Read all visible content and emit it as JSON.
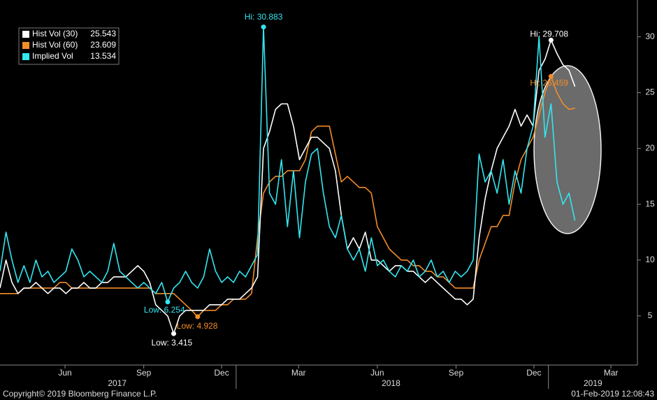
{
  "chart_data": {
    "type": "line",
    "x": [
      "2017-03-31",
      "2017-04-07",
      "2017-04-14",
      "2017-04-21",
      "2017-04-28",
      "2017-05-05",
      "2017-05-12",
      "2017-05-19",
      "2017-05-26",
      "2017-06-02",
      "2017-06-09",
      "2017-06-16",
      "2017-06-23",
      "2017-06-30",
      "2017-07-07",
      "2017-07-14",
      "2017-07-21",
      "2017-07-28",
      "2017-08-04",
      "2017-08-11",
      "2017-08-18",
      "2017-08-25",
      "2017-09-01",
      "2017-09-08",
      "2017-09-15",
      "2017-09-22",
      "2017-09-29",
      "2017-10-06",
      "2017-10-13",
      "2017-10-20",
      "2017-10-27",
      "2017-11-03",
      "2017-11-10",
      "2017-11-17",
      "2017-11-24",
      "2017-12-01",
      "2017-12-08",
      "2017-12-15",
      "2017-12-22",
      "2017-12-29",
      "2018-01-05",
      "2018-01-12",
      "2018-01-19",
      "2018-01-26",
      "2018-02-02",
      "2018-02-09",
      "2018-02-16",
      "2018-02-23",
      "2018-03-02",
      "2018-03-09",
      "2018-03-16",
      "2018-03-23",
      "2018-03-30",
      "2018-04-06",
      "2018-04-13",
      "2018-04-20",
      "2018-04-27",
      "2018-05-04",
      "2018-05-11",
      "2018-05-18",
      "2018-05-25",
      "2018-06-01",
      "2018-06-08",
      "2018-06-15",
      "2018-06-22",
      "2018-06-29",
      "2018-07-06",
      "2018-07-13",
      "2018-07-20",
      "2018-07-27",
      "2018-08-03",
      "2018-08-10",
      "2018-08-17",
      "2018-08-24",
      "2018-08-31",
      "2018-09-07",
      "2018-09-14",
      "2018-09-21",
      "2018-09-28",
      "2018-10-05",
      "2018-10-12",
      "2018-10-19",
      "2018-10-26",
      "2018-11-02",
      "2018-11-09",
      "2018-11-16",
      "2018-11-23",
      "2018-11-30",
      "2018-12-07",
      "2018-12-14",
      "2018-12-21",
      "2018-12-28",
      "2019-01-04",
      "2019-01-11",
      "2019-01-18",
      "2019-01-25",
      "2019-02-01"
    ],
    "series": [
      {
        "name": "Hist Vol (30)",
        "last": 25.543,
        "color": "#ffffff",
        "values": [
          7.5,
          10,
          8,
          7,
          7.5,
          7.5,
          8,
          7.5,
          7,
          7.5,
          7.5,
          7,
          7.5,
          7.5,
          8,
          7.5,
          7.5,
          8,
          8,
          8.5,
          8.5,
          8.5,
          9,
          9.5,
          9,
          8,
          6,
          5.5,
          5,
          3.415,
          5,
          5.5,
          5.5,
          5.5,
          5.5,
          6,
          6,
          6,
          6.5,
          6.5,
          6.5,
          7,
          7.5,
          8.5,
          20,
          21.5,
          23.5,
          24,
          24,
          22,
          19,
          20,
          21,
          21,
          20.5,
          20,
          18,
          14,
          11,
          12,
          11,
          12.5,
          10,
          10,
          9.5,
          9,
          9.5,
          9.5,
          9,
          9,
          8.5,
          8,
          8.5,
          8,
          7.5,
          7,
          6.5,
          6.5,
          6,
          6.5,
          12,
          15.5,
          18,
          20,
          21,
          22,
          23.5,
          22,
          23,
          22,
          27,
          28,
          29.708,
          28.5,
          27.5,
          27,
          25.543
        ]
      },
      {
        "name": "Hist Vol (60)",
        "last": 23.609,
        "color": "#f28c28",
        "values": [
          7,
          7,
          7,
          7,
          7.5,
          7.5,
          7.5,
          7.5,
          7.5,
          7.5,
          8,
          8,
          7.5,
          7.5,
          7.5,
          7.5,
          7.5,
          7.5,
          7.5,
          7.5,
          7.5,
          7.5,
          7.5,
          7.5,
          7.5,
          7.5,
          7,
          7,
          7,
          7,
          6.5,
          6,
          5.5,
          4.928,
          5.5,
          5.5,
          5.5,
          6,
          6,
          6.5,
          6.5,
          6.5,
          7,
          12,
          16,
          17,
          17.5,
          17.5,
          18,
          18,
          18,
          19,
          21.5,
          22,
          22,
          22,
          19.5,
          17,
          17.5,
          17,
          16.5,
          16.5,
          16,
          13,
          12,
          11,
          10.5,
          10,
          10,
          9.5,
          9.5,
          9,
          9,
          8.5,
          8.5,
          8,
          7.5,
          7.5,
          7.5,
          7.5,
          10,
          11.5,
          13,
          13,
          14,
          14,
          17,
          19,
          20,
          21,
          23,
          25,
          26.459,
          25,
          24,
          23.5,
          23.609
        ]
      },
      {
        "name": "Implied Vol",
        "last": 13.534,
        "color": "#33e6f0",
        "values": [
          9,
          12.5,
          10,
          8,
          9.5,
          8,
          10,
          8.5,
          9,
          8,
          8.5,
          9,
          11,
          10,
          8.5,
          9,
          8.5,
          8,
          9,
          11.5,
          9,
          8.5,
          8,
          7.5,
          8,
          7.5,
          7,
          8,
          6.254,
          7.5,
          8,
          9,
          8,
          7.5,
          8.5,
          11,
          9,
          8,
          8.5,
          8,
          9,
          8.5,
          9.5,
          10.5,
          30.883,
          16,
          15,
          19,
          13,
          18,
          12,
          17,
          19.5,
          20,
          16,
          13,
          12,
          14,
          11,
          10,
          11,
          9,
          12,
          9.5,
          10,
          9,
          8.5,
          9.5,
          9,
          10,
          8.5,
          9,
          10,
          8.5,
          9,
          8,
          9,
          8.5,
          9,
          10,
          19.5,
          17,
          18,
          16,
          19,
          15,
          18,
          16,
          20,
          22,
          30,
          21,
          24,
          17,
          15,
          16,
          13.534
        ]
      }
    ],
    "annotations": [
      {
        "series": 2,
        "index": 44,
        "label": "Hi: 30.883"
      },
      {
        "series": 2,
        "index": 28,
        "label": "Low: 6.254"
      },
      {
        "series": 1,
        "index": 33,
        "label": "Low: 4.928"
      },
      {
        "series": 0,
        "index": 29,
        "label": "Low: 3.415"
      },
      {
        "series": 0,
        "index": 92,
        "label": "Hi: 29.708"
      },
      {
        "series": 1,
        "index": 92,
        "label": "Hi: 26.459"
      }
    ],
    "xlim": [
      "2017-03-31",
      "2019-04-15"
    ],
    "xticks": [
      {
        "value": "2017-06-15",
        "label": "Jun"
      },
      {
        "value": "2017-09-15",
        "label": "Sep"
      },
      {
        "value": "2017-12-15",
        "label": "Dec"
      },
      {
        "value": "2018-03-15",
        "label": "Mar"
      },
      {
        "value": "2018-06-15",
        "label": "Jun"
      },
      {
        "value": "2018-09-15",
        "label": "Sep"
      },
      {
        "value": "2018-12-15",
        "label": "Dec"
      },
      {
        "value": "2019-03-15",
        "label": "Mar"
      }
    ],
    "year_ticks": [
      {
        "value": "2017-08-15",
        "label": "2017"
      },
      {
        "value": "2018-07-01",
        "label": "2018"
      },
      {
        "value": "2019-02-22",
        "label": "2019"
      }
    ],
    "year_boundaries": [
      "2018-01-01",
      "2019-01-01"
    ],
    "ylim": [
      0.6,
      33.3
    ],
    "yticks": [
      5,
      10,
      15,
      20,
      25,
      30
    ],
    "copyright": "Copyright© 2019 Bloomberg Finance L.P.",
    "timestamp": "01-Feb-2019 12:08:43"
  }
}
